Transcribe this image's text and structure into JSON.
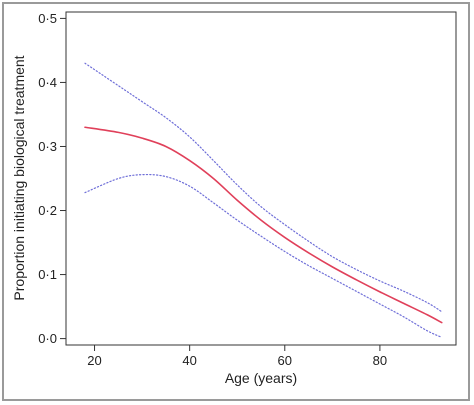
{
  "chart_data": {
    "type": "line",
    "title": "",
    "xlabel": "Age (years)",
    "ylabel": "Proportion initiating biological treatment",
    "xlim": [
      14,
      96
    ],
    "ylim": [
      -0.01,
      0.51
    ],
    "x_ticks": [
      20,
      40,
      60,
      80
    ],
    "x_tick_labels": [
      "20",
      "40",
      "60",
      "80"
    ],
    "y_ticks": [
      0.0,
      0.1,
      0.2,
      0.3,
      0.4,
      0.5
    ],
    "y_tick_labels": [
      "0·0",
      "0·1",
      "0·2",
      "0·3",
      "0·4",
      "0·5"
    ],
    "grid": false,
    "legend": "none",
    "series": [
      {
        "role": "estimate",
        "style": "solid",
        "color": "#e0405a",
        "x": [
          18,
          25,
          30,
          35,
          40,
          45,
          50,
          55,
          60,
          65,
          70,
          75,
          80,
          85,
          90,
          93
        ],
        "y": [
          0.33,
          0.322,
          0.313,
          0.3,
          0.278,
          0.25,
          0.216,
          0.185,
          0.158,
          0.134,
          0.112,
          0.092,
          0.073,
          0.055,
          0.037,
          0.025
        ]
      },
      {
        "role": "upper-ci",
        "style": "dotted",
        "color": "#6f6fd8",
        "x": [
          18,
          25,
          30,
          35,
          40,
          45,
          50,
          55,
          60,
          65,
          70,
          75,
          80,
          85,
          90,
          93
        ],
        "y": [
          0.43,
          0.395,
          0.37,
          0.345,
          0.315,
          0.278,
          0.24,
          0.206,
          0.178,
          0.152,
          0.128,
          0.108,
          0.09,
          0.074,
          0.056,
          0.042
        ]
      },
      {
        "role": "lower-ci",
        "style": "dotted",
        "color": "#6f6fd8",
        "x": [
          18,
          25,
          30,
          35,
          40,
          45,
          50,
          55,
          60,
          65,
          70,
          75,
          80,
          85,
          90,
          93
        ],
        "y": [
          0.228,
          0.25,
          0.256,
          0.253,
          0.238,
          0.212,
          0.185,
          0.16,
          0.136,
          0.114,
          0.094,
          0.074,
          0.054,
          0.034,
          0.012,
          0.002
        ]
      }
    ]
  }
}
